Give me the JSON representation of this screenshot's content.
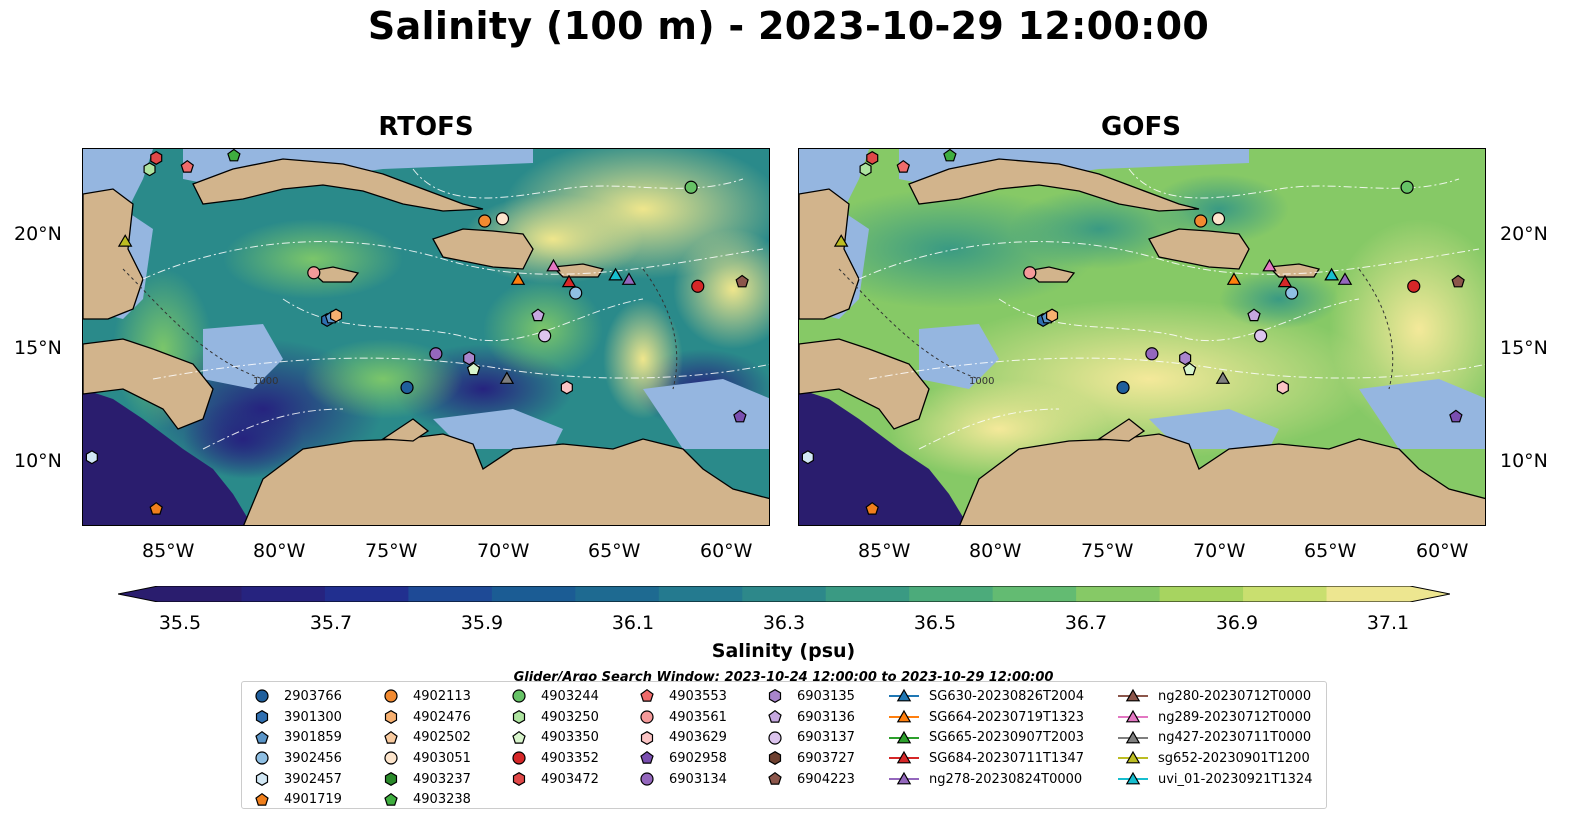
{
  "title": "Salinity (100 m) - 2023-10-29 12:00:00",
  "panels": [
    {
      "title": "RTOFS"
    },
    {
      "title": "GOFS"
    }
  ],
  "axes": {
    "lon_ticks": [
      "85°W",
      "80°W",
      "75°W",
      "70°W",
      "65°W",
      "60°W"
    ],
    "lat_ticks": [
      "20°N",
      "15°N",
      "10°N"
    ]
  },
  "colorbar": {
    "label": "Salinity (psu)",
    "ticks": [
      "35.5",
      "35.7",
      "35.9",
      "36.1",
      "36.3",
      "36.5",
      "36.7",
      "36.9",
      "37.1"
    ],
    "colors": [
      "#2a1d6e",
      "#26237f",
      "#212f8f",
      "#1e4a96",
      "#1b5c94",
      "#1e6a91",
      "#247a8f",
      "#2d888a",
      "#3a9a83",
      "#4cab7b",
      "#63bb72",
      "#86c966",
      "#a7d460",
      "#c9df6f",
      "#ede690"
    ],
    "extend": "both"
  },
  "contour_label": "1000",
  "legend": {
    "title": "Glider/Argo Search Window: 2023-10-24 12:00:00 to 2023-10-29 12:00:00",
    "columns": [
      [
        {
          "label": "2903766",
          "marker": "circle",
          "color": "#1f5f9c"
        },
        {
          "label": "3901300",
          "marker": "hexagon",
          "color": "#2f6fb0"
        },
        {
          "label": "3901859",
          "marker": "pentagon",
          "color": "#5a95c8"
        },
        {
          "label": "3902456",
          "marker": "circle",
          "color": "#8fbfe3"
        },
        {
          "label": "3902457",
          "marker": "hexagon",
          "color": "#d2e8f5"
        },
        {
          "label": "4901719",
          "marker": "pentagon",
          "color": "#f07f1c"
        }
      ],
      [
        {
          "label": "4902113",
          "marker": "circle",
          "color": "#f28a30"
        },
        {
          "label": "4902476",
          "marker": "hexagon",
          "color": "#f7b070"
        },
        {
          "label": "4902502",
          "marker": "pentagon",
          "color": "#f9cba0"
        },
        {
          "label": "4903051",
          "marker": "circle",
          "color": "#fde5cc"
        },
        {
          "label": "4903237",
          "marker": "hexagon",
          "color": "#2a8a2a"
        },
        {
          "label": "4903238",
          "marker": "pentagon",
          "color": "#3fae3f"
        }
      ],
      [
        {
          "label": "4903244",
          "marker": "circle",
          "color": "#66c266"
        },
        {
          "label": "4903250",
          "marker": "hexagon",
          "color": "#aee4a0"
        },
        {
          "label": "4903350",
          "marker": "pentagon",
          "color": "#d8f5cc"
        },
        {
          "label": "4903352",
          "marker": "circle",
          "color": "#d62728"
        },
        {
          "label": "4903472",
          "marker": "hexagon",
          "color": "#e04848"
        }
      ],
      [
        {
          "label": "4903553",
          "marker": "pentagon",
          "color": "#ef6b6b"
        },
        {
          "label": "4903561",
          "marker": "circle",
          "color": "#f59a9a"
        },
        {
          "label": "4903629",
          "marker": "hexagon",
          "color": "#fbc4c4"
        },
        {
          "label": "6902958",
          "marker": "pentagon",
          "color": "#7a4fb0"
        },
        {
          "label": "6903134",
          "marker": "circle",
          "color": "#9467bd"
        }
      ],
      [
        {
          "label": "6903135",
          "marker": "hexagon",
          "color": "#a985cc"
        },
        {
          "label": "6903136",
          "marker": "pentagon",
          "color": "#c6a8e0"
        },
        {
          "label": "6903137",
          "marker": "circle",
          "color": "#dcc4ee"
        },
        {
          "label": "6903727",
          "marker": "hexagon",
          "color": "#6e4030"
        },
        {
          "label": "6904223",
          "marker": "pentagon",
          "color": "#8c564b"
        }
      ],
      [
        {
          "label": "SG630-20230826T2004",
          "marker": "triangle",
          "color": "#1f77b4"
        },
        {
          "label": "SG664-20230719T1323",
          "marker": "triangle",
          "color": "#ff7f0e"
        },
        {
          "label": "SG665-20230907T2003",
          "marker": "triangle",
          "color": "#2ca02c"
        },
        {
          "label": "SG684-20230711T1347",
          "marker": "triangle",
          "color": "#d62728"
        },
        {
          "label": "ng278-20230824T0000",
          "marker": "triangle",
          "color": "#9467bd"
        }
      ],
      [
        {
          "label": "ng280-20230712T0000",
          "marker": "triangle",
          "color": "#8c564b"
        },
        {
          "label": "ng289-20230712T0000",
          "marker": "triangle",
          "color": "#e377c2"
        },
        {
          "label": "ng427-20230711T0000",
          "marker": "triangle",
          "color": "#7f7f7f"
        },
        {
          "label": "sg652-20230901T1200",
          "marker": "triangle",
          "color": "#bcbd22"
        },
        {
          "label": "uvi_01-20230921T1324",
          "marker": "triangle",
          "color": "#17becf"
        }
      ]
    ]
  },
  "observations": [
    {
      "label": "2903766",
      "lon": -74.4,
      "lat": 13.2
    },
    {
      "label": "3901300",
      "lon": -78.0,
      "lat": 16.2
    },
    {
      "label": "3901859",
      "lon": -77.8,
      "lat": 16.3
    },
    {
      "label": "3902456",
      "lon": -66.8,
      "lat": 17.4
    },
    {
      "label": "3902457",
      "lon": -88.6,
      "lat": 10.1
    },
    {
      "label": "4901719",
      "lon": -85.7,
      "lat": 7.8
    },
    {
      "label": "4902113",
      "lon": -70.9,
      "lat": 20.6
    },
    {
      "label": "4902476",
      "lon": -77.6,
      "lat": 16.4
    },
    {
      "label": "4903051",
      "lon": -70.1,
      "lat": 20.7
    },
    {
      "label": "4903238",
      "lon": -82.2,
      "lat": 23.5
    },
    {
      "label": "4903244",
      "lon": -61.6,
      "lat": 22.1
    },
    {
      "label": "4903250",
      "lon": -86.0,
      "lat": 22.9
    },
    {
      "label": "4903350",
      "lon": -71.4,
      "lat": 14.0
    },
    {
      "label": "4903352",
      "lon": -61.3,
      "lat": 17.7
    },
    {
      "label": "4903472",
      "lon": -85.7,
      "lat": 23.4
    },
    {
      "label": "4903553",
      "lon": -84.3,
      "lat": 23.0
    },
    {
      "label": "4903561",
      "lon": -78.6,
      "lat": 18.3
    },
    {
      "label": "4903629",
      "lon": -67.2,
      "lat": 13.2
    },
    {
      "label": "6902958",
      "lon": -59.4,
      "lat": 11.9
    },
    {
      "label": "6903134",
      "lon": -73.1,
      "lat": 14.7
    },
    {
      "label": "6903135",
      "lon": -71.6,
      "lat": 14.5
    },
    {
      "label": "6903136",
      "lon": -68.5,
      "lat": 16.4
    },
    {
      "label": "6903137",
      "lon": -68.2,
      "lat": 15.5
    },
    {
      "label": "6904223",
      "lon": -59.3,
      "lat": 17.9
    },
    {
      "label": "SG630-20230826T2004",
      "lon": -65.0,
      "lat": 18.2
    },
    {
      "label": "SG664-20230719T1323",
      "lon": -69.4,
      "lat": 18.0
    },
    {
      "label": "SG684-20230711T1347",
      "lon": -67.1,
      "lat": 17.9
    },
    {
      "label": "ng278-20230824T0000",
      "lon": -64.4,
      "lat": 18.0
    },
    {
      "label": "ng289-20230712T0000",
      "lon": -67.8,
      "lat": 18.6
    },
    {
      "label": "ng427-20230711T0000",
      "lon": -69.9,
      "lat": 13.6
    },
    {
      "label": "sg652-20230901T1200",
      "lon": -87.1,
      "lat": 19.7
    },
    {
      "label": "uvi_01-20230921T1324",
      "lon": -65.0,
      "lat": 18.2
    }
  ]
}
